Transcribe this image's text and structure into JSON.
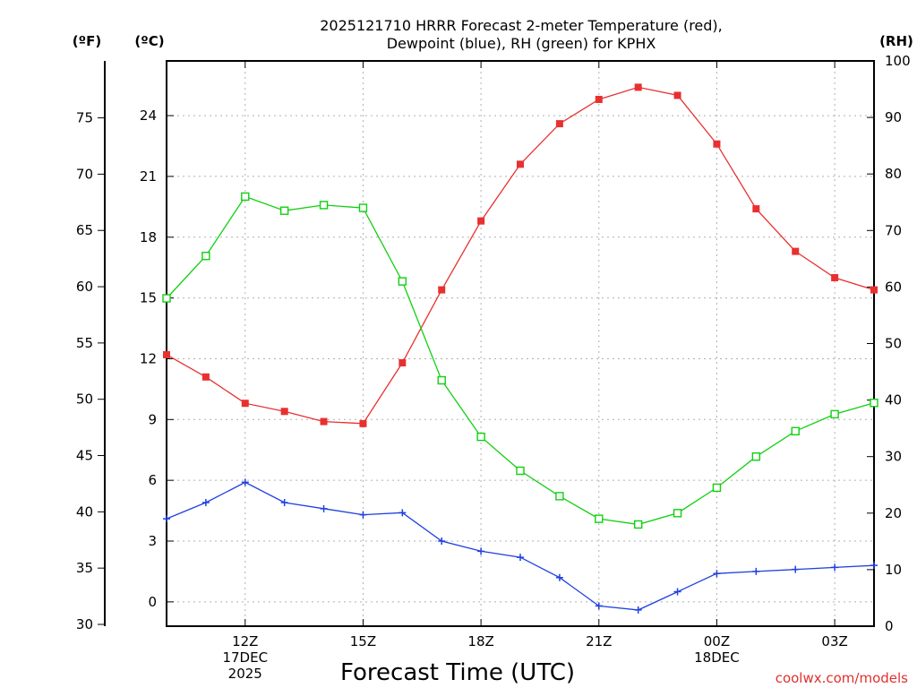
{
  "chart_data": {
    "type": "line",
    "title_lines": [
      "2025121710 HRRR Forecast 2-meter Temperature (red),",
      "Dewpoint (blue), RH (green) for KPHX"
    ],
    "unit_labels": {
      "fahrenheit": "(ºF)",
      "celsius": "(ºC)",
      "rh": "(RH)"
    },
    "xlabel": "Forecast Time (UTC)",
    "credit": "coolwx.com/models",
    "x_hours": [
      10,
      11,
      12,
      13,
      14,
      15,
      16,
      17,
      18,
      19,
      20,
      21,
      22,
      23,
      24,
      25,
      26,
      27,
      28
    ],
    "xlim": [
      10,
      28
    ],
    "x_ticks": [
      {
        "hour": 12,
        "lines": [
          "12Z",
          "17DEC",
          "2025"
        ]
      },
      {
        "hour": 15,
        "lines": [
          "15Z"
        ]
      },
      {
        "hour": 18,
        "lines": [
          "18Z"
        ]
      },
      {
        "hour": 21,
        "lines": [
          "21Z"
        ]
      },
      {
        "hour": 24,
        "lines": [
          "00Z",
          "18DEC"
        ]
      },
      {
        "hour": 27,
        "lines": [
          "03Z"
        ]
      }
    ],
    "celsius_axis": {
      "range": [
        -1.2,
        26.7
      ],
      "ticks": [
        0,
        3,
        6,
        9,
        12,
        15,
        18,
        21,
        24
      ]
    },
    "fahrenheit_axis": {
      "ticks": [
        30,
        35,
        40,
        45,
        50,
        55,
        60,
        65,
        70,
        75
      ]
    },
    "rh_axis": {
      "range": [
        0,
        100
      ],
      "ticks": [
        0,
        10,
        20,
        30,
        40,
        50,
        60,
        70,
        80,
        90,
        100
      ]
    },
    "series": [
      {
        "name": "2-meter Temperature",
        "axis": "celsius",
        "color": "#e83030",
        "marker": "filled-square",
        "values": [
          12.2,
          11.1,
          9.8,
          9.4,
          8.9,
          8.8,
          11.8,
          15.4,
          18.8,
          21.6,
          23.6,
          24.8,
          25.4,
          25.0,
          22.6,
          19.4,
          17.3,
          16.0,
          15.4
        ]
      },
      {
        "name": "Dewpoint",
        "axis": "celsius",
        "color": "#2040e0",
        "marker": "plus",
        "values": [
          4.1,
          4.9,
          5.9,
          4.9,
          4.6,
          4.3,
          4.4,
          3.0,
          2.5,
          2.2,
          1.2,
          -0.2,
          -0.4,
          0.5,
          1.4,
          1.5,
          1.6,
          1.7,
          1.8
        ]
      },
      {
        "name": "RH",
        "axis": "rh",
        "color": "#10d010",
        "marker": "open-square",
        "values": [
          58,
          65.5,
          76,
          73.5,
          74.5,
          74,
          61,
          43.5,
          33.5,
          27.5,
          23,
          19,
          18,
          20,
          24.5,
          30,
          34.5,
          37.5,
          39.5
        ]
      }
    ]
  }
}
